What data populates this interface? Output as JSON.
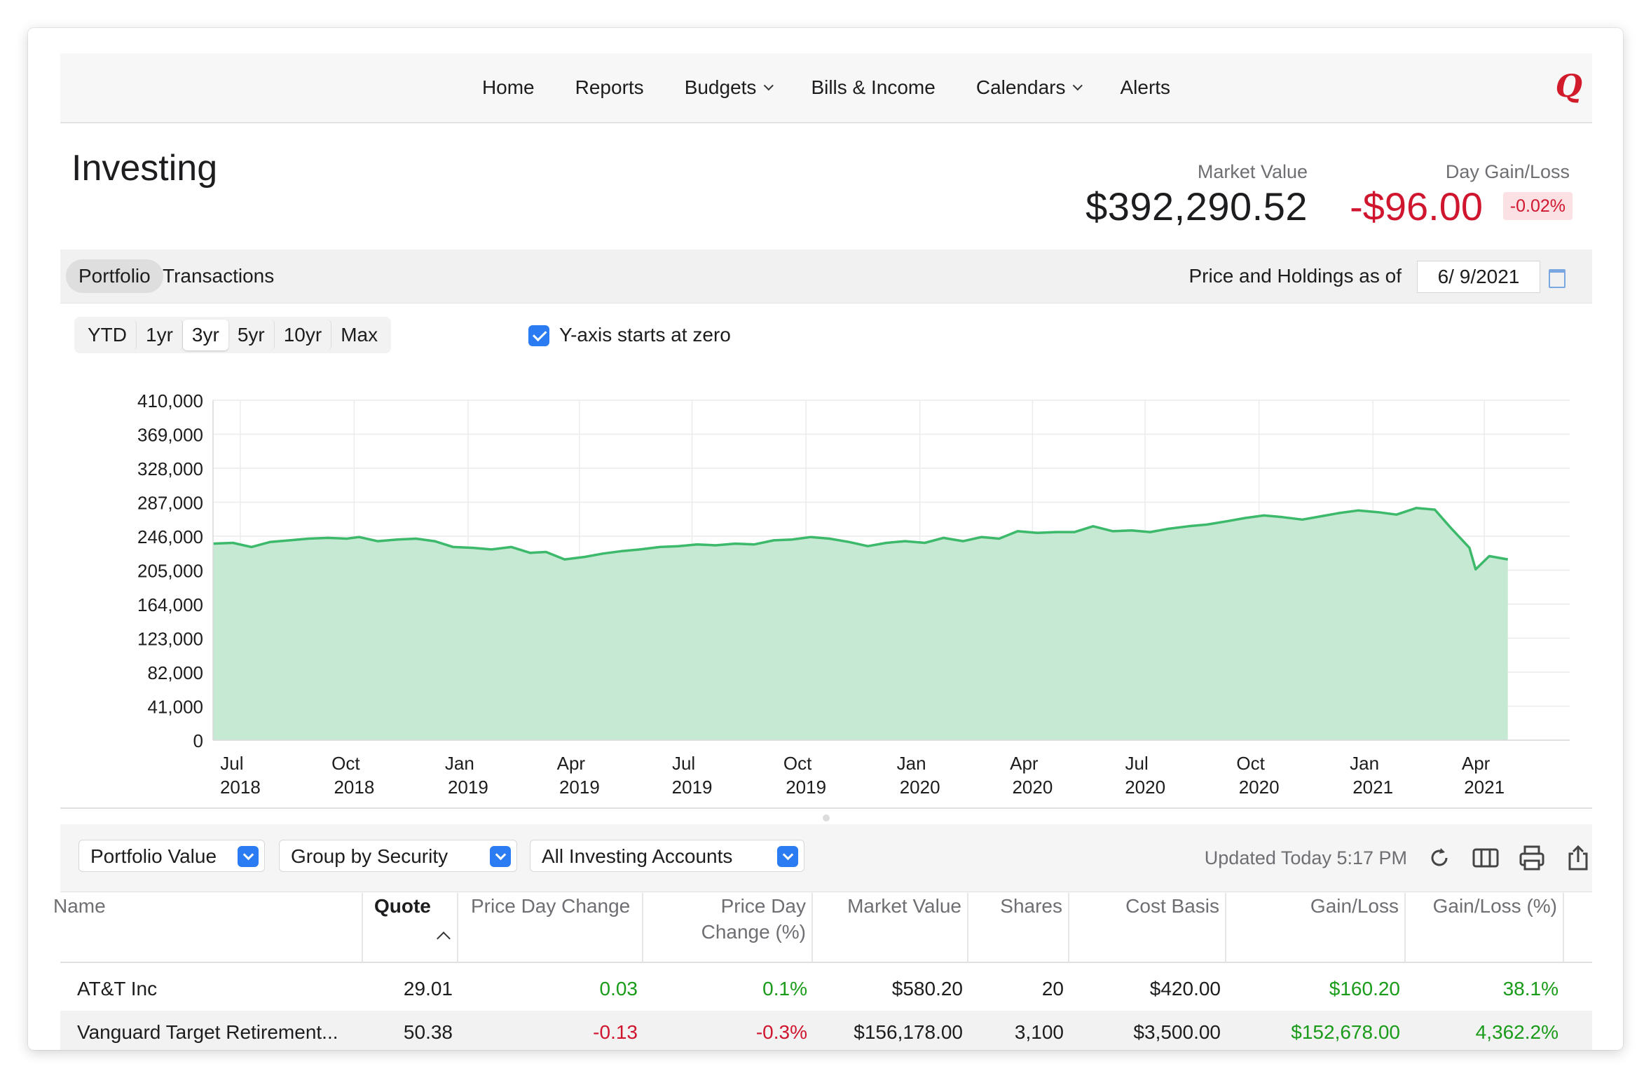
{
  "nav": {
    "items": [
      {
        "label": "Home",
        "dropdown": false
      },
      {
        "label": "Reports",
        "dropdown": false
      },
      {
        "label": "Budgets",
        "dropdown": true
      },
      {
        "label": "Bills & Income",
        "dropdown": false
      },
      {
        "label": "Calendars",
        "dropdown": true
      },
      {
        "label": "Alerts",
        "dropdown": false
      }
    ],
    "logo": "Q"
  },
  "header": {
    "title": "Investing",
    "market_value_label": "Market Value",
    "market_value": "$392,290.52",
    "day_gain_label": "Day Gain/Loss",
    "day_gain": "-$96.00",
    "day_gain_pct": "-0.02%"
  },
  "tabs": {
    "portfolio": "Portfolio",
    "transactions": "Transactions",
    "active": "Portfolio"
  },
  "as_of": {
    "label": "Price and Holdings as of",
    "date": "6/ 9/2021"
  },
  "range": {
    "buttons": [
      "YTD",
      "1yr",
      "3yr",
      "5yr",
      "10yr",
      "Max"
    ],
    "active": "3yr"
  },
  "yaxis_option": {
    "label": "Y-axis starts at zero",
    "checked": true
  },
  "colors": {
    "accent": "#2b7bf2",
    "gain": "#1a9b1a",
    "loss": "#d0162f",
    "chart_line": "#3cb96a",
    "chart_fill": "#c5e9d2"
  },
  "chart_data": {
    "type": "area",
    "ylim": [
      0,
      410000
    ],
    "yticks": [
      "410,000",
      "369,000",
      "328,000",
      "287,000",
      "246,000",
      "205,000",
      "164,000",
      "123,000",
      "82,000",
      "41,000",
      "0"
    ],
    "xticks": [
      {
        "month": "Jul",
        "year": "2018"
      },
      {
        "month": "Oct",
        "year": "2018"
      },
      {
        "month": "Jan",
        "year": "2019"
      },
      {
        "month": "Apr",
        "year": "2019"
      },
      {
        "month": "Jul",
        "year": "2019"
      },
      {
        "month": "Oct",
        "year": "2019"
      },
      {
        "month": "Jan",
        "year": "2020"
      },
      {
        "month": "Apr",
        "year": "2020"
      },
      {
        "month": "Jul",
        "year": "2020"
      },
      {
        "month": "Oct",
        "year": "2020"
      },
      {
        "month": "Jan",
        "year": "2021"
      },
      {
        "month": "Apr",
        "year": "2021"
      }
    ],
    "xstart": "2018-06-09",
    "xend": "2021-06-09",
    "grid": true,
    "series": [
      {
        "points": [
          [
            "2018-06-09",
            237000
          ],
          [
            "2018-06-25",
            238000
          ],
          [
            "2018-07-10",
            233000
          ],
          [
            "2018-07-25",
            239000
          ],
          [
            "2018-08-10",
            241000
          ],
          [
            "2018-08-25",
            243000
          ],
          [
            "2018-09-10",
            244000
          ],
          [
            "2018-09-25",
            243000
          ],
          [
            "2018-10-05",
            245000
          ],
          [
            "2018-10-20",
            240000
          ],
          [
            "2018-11-05",
            242000
          ],
          [
            "2018-11-20",
            243000
          ],
          [
            "2018-12-05",
            240000
          ],
          [
            "2018-12-20",
            233000
          ],
          [
            "2019-01-05",
            232000
          ],
          [
            "2019-01-20",
            230000
          ],
          [
            "2019-02-05",
            233000
          ],
          [
            "2019-02-20",
            226000
          ],
          [
            "2019-03-05",
            227000
          ],
          [
            "2019-03-20",
            218000
          ],
          [
            "2019-04-05",
            221000
          ],
          [
            "2019-04-20",
            225000
          ],
          [
            "2019-05-05",
            228000
          ],
          [
            "2019-05-20",
            230000
          ],
          [
            "2019-06-05",
            233000
          ],
          [
            "2019-06-20",
            234000
          ],
          [
            "2019-07-05",
            236000
          ],
          [
            "2019-07-20",
            235000
          ],
          [
            "2019-08-05",
            237000
          ],
          [
            "2019-08-20",
            236000
          ],
          [
            "2019-09-05",
            241000
          ],
          [
            "2019-09-20",
            242000
          ],
          [
            "2019-10-05",
            245000
          ],
          [
            "2019-10-20",
            243000
          ],
          [
            "2019-11-05",
            239000
          ],
          [
            "2019-11-20",
            234000
          ],
          [
            "2019-12-05",
            238000
          ],
          [
            "2019-12-20",
            240000
          ],
          [
            "2020-01-05",
            238000
          ],
          [
            "2020-01-20",
            244000
          ],
          [
            "2020-02-05",
            240000
          ],
          [
            "2020-02-20",
            245000
          ],
          [
            "2020-03-05",
            243000
          ],
          [
            "2020-03-20",
            252000
          ],
          [
            "2020-04-05",
            250000
          ],
          [
            "2020-04-20",
            251000
          ],
          [
            "2020-05-05",
            251000
          ],
          [
            "2020-05-20",
            258000
          ],
          [
            "2020-06-05",
            252000
          ],
          [
            "2020-06-20",
            253000
          ],
          [
            "2020-07-05",
            251000
          ],
          [
            "2020-07-20",
            255000
          ],
          [
            "2020-08-05",
            258000
          ],
          [
            "2020-08-20",
            260000
          ],
          [
            "2020-09-05",
            264000
          ],
          [
            "2020-09-20",
            268000
          ],
          [
            "2020-10-05",
            271000
          ],
          [
            "2020-10-20",
            269000
          ],
          [
            "2020-11-05",
            266000
          ],
          [
            "2020-11-20",
            270000
          ],
          [
            "2020-12-05",
            274000
          ],
          [
            "2020-12-20",
            277000
          ],
          [
            "2021-01-05",
            275000
          ],
          [
            "2021-01-20",
            272000
          ],
          [
            "2021-02-05",
            280000
          ],
          [
            "2021-02-20",
            278000
          ],
          [
            "2021-03-05",
            256000
          ],
          [
            "2021-03-20",
            232000
          ],
          [
            "2021-03-25",
            206000
          ],
          [
            "2021-04-05",
            222000
          ],
          [
            "2021-04-20",
            218000
          ]
        ]
      }
    ]
  },
  "controls": {
    "value_dropdown": "Portfolio Value",
    "group_dropdown": "Group by Security",
    "accounts_dropdown": "All Investing Accounts",
    "updated": "Updated Today  5:17 PM"
  },
  "table": {
    "columns": [
      {
        "label": "Name",
        "sub": ""
      },
      {
        "label": "Quote",
        "sub": ""
      },
      {
        "label": "Price Day Change",
        "sub": ""
      },
      {
        "label": "Price Day",
        "sub": "Change (%)"
      },
      {
        "label": "Market Value",
        "sub": ""
      },
      {
        "label": "Shares",
        "sub": ""
      },
      {
        "label": "Cost Basis",
        "sub": ""
      },
      {
        "label": "Gain/Loss",
        "sub": ""
      },
      {
        "label": "Gain/Loss (%)",
        "sub": ""
      }
    ],
    "rows": [
      {
        "name": "AT&T Inc",
        "quote": "29.01",
        "price_day_change": "0.03",
        "price_day_change_pct": "0.1%",
        "market_value": "$580.20",
        "shares": "20",
        "cost_basis": "$420.00",
        "gain_loss": "$160.20",
        "gain_loss_pct": "38.1%"
      },
      {
        "name": "Vanguard Target Retirement...",
        "quote": "50.38",
        "price_day_change": "-0.13",
        "price_day_change_pct": "-0.3%",
        "market_value": "$156,178.00",
        "shares": "3,100",
        "cost_basis": "$3,500.00",
        "gain_loss": "$152,678.00",
        "gain_loss_pct": "4,362.2%"
      }
    ]
  }
}
